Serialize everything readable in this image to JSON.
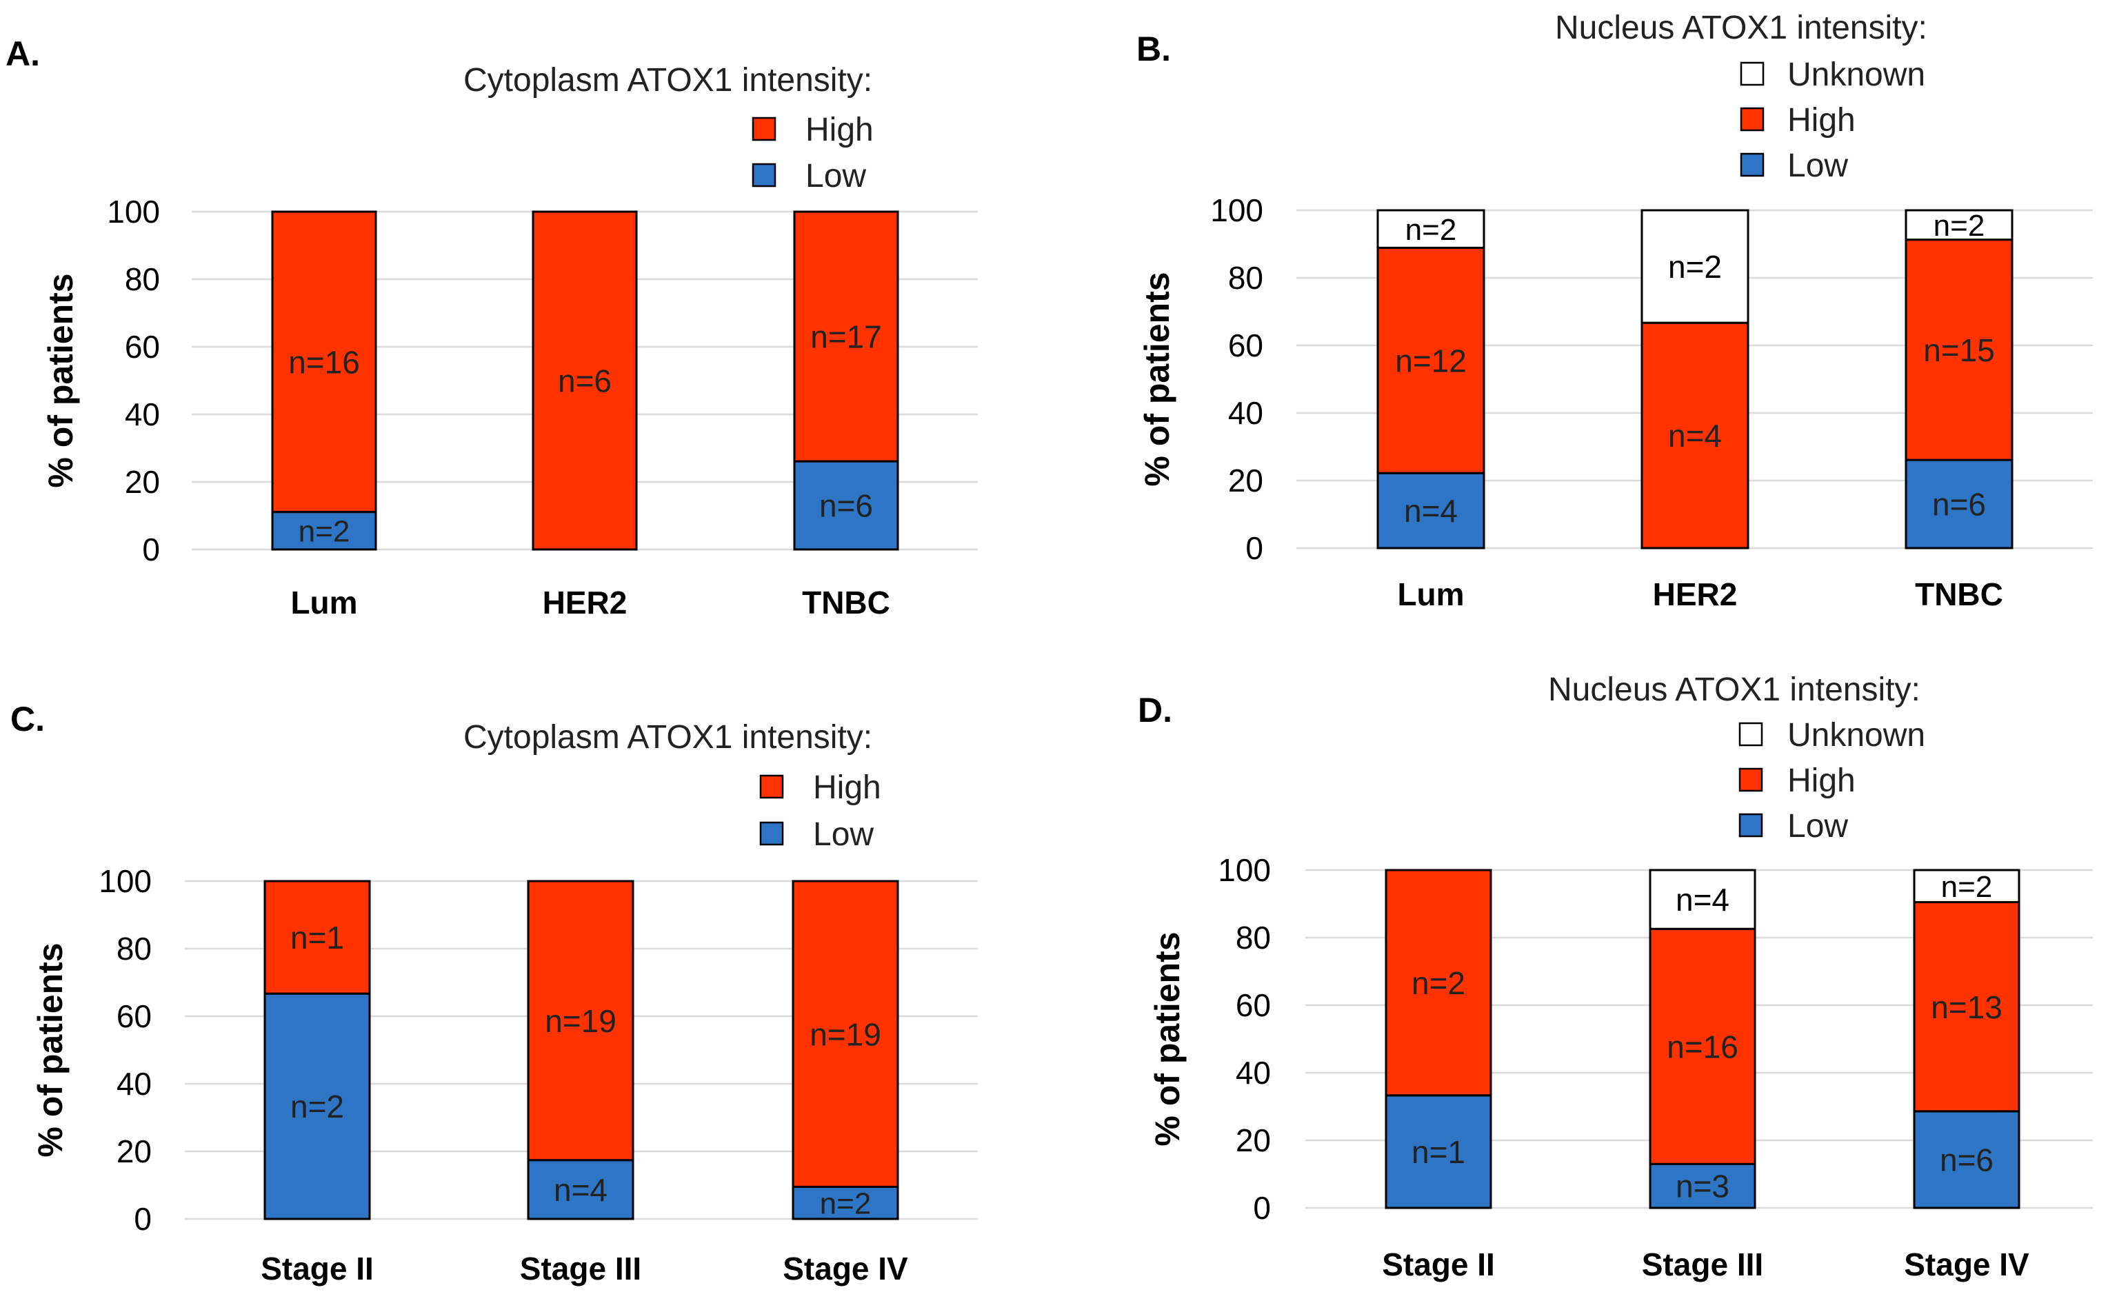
{
  "panels": [
    {
      "id": "A",
      "panel_label": "A.",
      "legend": {
        "title": "Cytoplasm ATOX1 intensity:",
        "entries": [
          {
            "name": "High",
            "color": "#ff3300"
          },
          {
            "name": "Low",
            "color": "#2e75c6"
          }
        ]
      }
    },
    {
      "id": "B",
      "panel_label": "B.",
      "legend": {
        "title": "Nucleus ATOX1 intensity:",
        "entries": [
          {
            "name": "Unknown",
            "color": "#ffffff"
          },
          {
            "name": "High",
            "color": "#ff3300"
          },
          {
            "name": "Low",
            "color": "#2e75c6"
          }
        ]
      }
    },
    {
      "id": "C",
      "panel_label": "C.",
      "legend": {
        "title": "Cytoplasm ATOX1 intensity:",
        "entries": [
          {
            "name": "High",
            "color": "#ff3300"
          },
          {
            "name": "Low",
            "color": "#2e75c6"
          }
        ]
      }
    },
    {
      "id": "D",
      "panel_label": "D.",
      "legend": {
        "title": "Nucleus ATOX1 intensity:",
        "entries": [
          {
            "name": "Unknown",
            "color": "#ffffff"
          },
          {
            "name": "High",
            "color": "#ff3300"
          },
          {
            "name": "Low",
            "color": "#2e75c6"
          }
        ]
      }
    }
  ],
  "chart_data": [
    {
      "type": "bar",
      "stacked": true,
      "panel": "A",
      "title": "",
      "ylabel": "% of patients",
      "xlabel": "",
      "ylim": [
        0,
        100
      ],
      "yticks": [
        0,
        20,
        40,
        60,
        80,
        100
      ],
      "grid": true,
      "categories": [
        "Lum",
        "HER2",
        "TNBC"
      ],
      "series": [
        {
          "name": "Low",
          "color": "#2e75c6",
          "values": [
            11.1,
            0,
            26.1
          ],
          "labels": [
            "n=2",
            "",
            "n=6"
          ]
        },
        {
          "name": "High",
          "color": "#ff3300",
          "values": [
            88.9,
            100,
            73.9
          ],
          "labels": [
            "n=16",
            "n=6",
            "n=17"
          ]
        }
      ]
    },
    {
      "type": "bar",
      "stacked": true,
      "panel": "B",
      "title": "",
      "ylabel": "% of patients",
      "xlabel": "",
      "ylim": [
        0,
        100
      ],
      "yticks": [
        0,
        20,
        40,
        60,
        80,
        100
      ],
      "grid": true,
      "categories": [
        "Lum",
        "HER2",
        "TNBC"
      ],
      "series": [
        {
          "name": "Low",
          "color": "#2e75c6",
          "values": [
            22.2,
            0,
            26.1
          ],
          "labels": [
            "n=4",
            "",
            "n=6"
          ]
        },
        {
          "name": "High",
          "color": "#ff3300",
          "values": [
            66.7,
            66.7,
            65.2
          ],
          "labels": [
            "n=12",
            "n=4",
            "n=15"
          ]
        },
        {
          "name": "Unknown",
          "color": "#ffffff",
          "values": [
            11.1,
            33.3,
            8.7
          ],
          "labels": [
            "n=2",
            "n=2",
            "n=2"
          ]
        }
      ]
    },
    {
      "type": "bar",
      "stacked": true,
      "panel": "C",
      "title": "",
      "ylabel": "% of patients",
      "xlabel": "",
      "ylim": [
        0,
        100
      ],
      "yticks": [
        0,
        20,
        40,
        60,
        80,
        100
      ],
      "grid": true,
      "categories": [
        "Stage II",
        "Stage III",
        "Stage IV"
      ],
      "series": [
        {
          "name": "Low",
          "color": "#2e75c6",
          "values": [
            66.7,
            17.4,
            9.5
          ],
          "labels": [
            "n=2",
            "n=4",
            "n=2"
          ]
        },
        {
          "name": "High",
          "color": "#ff3300",
          "values": [
            33.3,
            82.6,
            90.5
          ],
          "labels": [
            "n=1",
            "n=19",
            "n=19"
          ]
        }
      ]
    },
    {
      "type": "bar",
      "stacked": true,
      "panel": "D",
      "title": "",
      "ylabel": "% of patients",
      "xlabel": "",
      "ylim": [
        0,
        100
      ],
      "yticks": [
        0,
        20,
        40,
        60,
        80,
        100
      ],
      "grid": true,
      "categories": [
        "Stage II",
        "Stage III",
        "Stage IV"
      ],
      "series": [
        {
          "name": "Low",
          "color": "#2e75c6",
          "values": [
            33.3,
            13.0,
            28.6
          ],
          "labels": [
            "n=1",
            "n=3",
            "n=6"
          ]
        },
        {
          "name": "High",
          "color": "#ff3300",
          "values": [
            66.7,
            69.6,
            61.9
          ],
          "labels": [
            "n=2",
            "n=16",
            "n=13"
          ]
        },
        {
          "name": "Unknown",
          "color": "#ffffff",
          "values": [
            0,
            17.4,
            9.5
          ],
          "labels": [
            "",
            "n=4",
            "n=2"
          ]
        }
      ]
    }
  ]
}
